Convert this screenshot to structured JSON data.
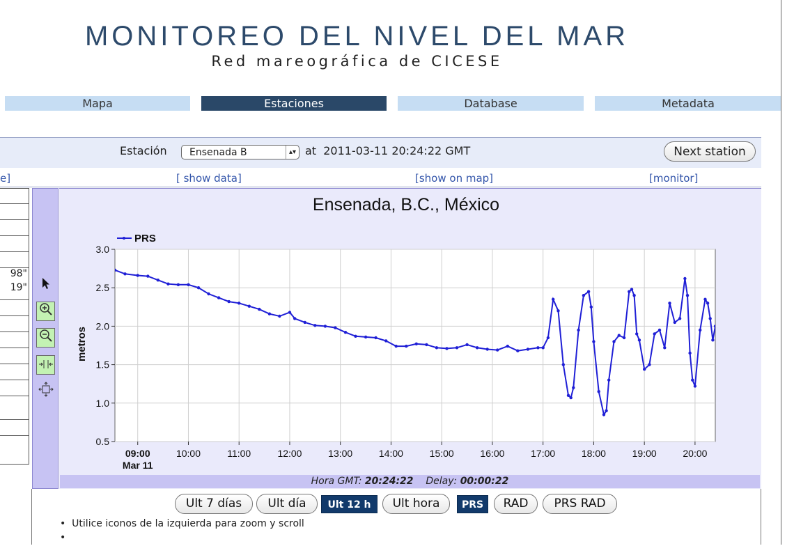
{
  "header": {
    "title": "MONITOREO DEL NIVEL DEL MAR",
    "subtitle": "Red mareográfica de CICESE"
  },
  "nav": {
    "tabs": [
      {
        "label": "Mapa",
        "active": false
      },
      {
        "label": "Estaciones",
        "active": true
      },
      {
        "label": "Database",
        "active": false
      },
      {
        "label": "Metadata",
        "active": false
      }
    ]
  },
  "station_bar": {
    "label": "Estación",
    "selected": "Ensenada B",
    "at_text": "at  2011-03-11 20:24:22 GMT",
    "next_button": "Next station"
  },
  "links": {
    "partial_left": "e]",
    "show_data": "[ show data]",
    "show_on_map": "[show on map]",
    "monitor": "[monitor]"
  },
  "left_table": {
    "values": [
      "",
      "",
      "",
      "",
      "98\"",
      "19\"",
      "",
      "",
      "",
      "",
      "",
      "",
      ""
    ]
  },
  "toolbar": {
    "tools": [
      "pointer-icon",
      "zoom-in-icon",
      "zoom-out-icon",
      "fit-horizontal-icon",
      "pan-icon"
    ]
  },
  "chart_data": {
    "type": "line",
    "title": "Ensenada, B.C., México",
    "ylabel": "metros",
    "xlabel": "",
    "ylim": [
      0.5,
      3.0
    ],
    "yticks": [
      0.5,
      1.0,
      1.5,
      2.0,
      2.5,
      3.0
    ],
    "xticks": [
      "09:00",
      "10:00",
      "11:00",
      "12:00",
      "13:00",
      "14:00",
      "15:00",
      "16:00",
      "17:00",
      "18:00",
      "19:00",
      "20:00"
    ],
    "x_sub_label": "Mar 11",
    "xlim_hours": [
      8.55,
      20.4
    ],
    "grid": true,
    "legend": "top-left",
    "color": "#1f1fd6",
    "series": [
      {
        "name": "PRS",
        "x": [
          8.55,
          8.75,
          9.0,
          9.2,
          9.4,
          9.6,
          9.8,
          10.0,
          10.2,
          10.4,
          10.6,
          10.8,
          11.0,
          11.2,
          11.4,
          11.6,
          11.8,
          12.0,
          12.1,
          12.3,
          12.5,
          12.7,
          12.9,
          13.1,
          13.3,
          13.5,
          13.7,
          13.9,
          14.1,
          14.3,
          14.5,
          14.7,
          14.9,
          15.1,
          15.3,
          15.5,
          15.7,
          15.9,
          16.1,
          16.3,
          16.5,
          16.7,
          16.9,
          17.0,
          17.1,
          17.2,
          17.3,
          17.4,
          17.5,
          17.55,
          17.6,
          17.7,
          17.8,
          17.9,
          17.95,
          18.0,
          18.1,
          18.2,
          18.25,
          18.3,
          18.4,
          18.5,
          18.6,
          18.7,
          18.75,
          18.8,
          18.85,
          18.9,
          19.0,
          19.1,
          19.2,
          19.3,
          19.4,
          19.5,
          19.6,
          19.7,
          19.8,
          19.85,
          19.9,
          19.95,
          20.0,
          20.1,
          20.2,
          20.25,
          20.3,
          20.35,
          20.4
        ],
        "y": [
          2.73,
          2.68,
          2.66,
          2.65,
          2.6,
          2.55,
          2.54,
          2.54,
          2.5,
          2.42,
          2.37,
          2.32,
          2.3,
          2.26,
          2.22,
          2.16,
          2.13,
          2.18,
          2.1,
          2.05,
          2.01,
          2.0,
          1.98,
          1.92,
          1.87,
          1.86,
          1.85,
          1.81,
          1.74,
          1.74,
          1.77,
          1.76,
          1.72,
          1.71,
          1.72,
          1.76,
          1.72,
          1.7,
          1.69,
          1.74,
          1.68,
          1.7,
          1.72,
          1.72,
          1.85,
          2.35,
          2.2,
          1.5,
          1.1,
          1.07,
          1.2,
          1.95,
          2.4,
          2.45,
          2.25,
          1.8,
          1.15,
          0.85,
          0.9,
          1.3,
          1.8,
          1.88,
          1.85,
          2.45,
          2.48,
          2.4,
          1.9,
          1.82,
          1.44,
          1.5,
          1.9,
          1.95,
          1.72,
          2.3,
          2.05,
          2.1,
          2.62,
          2.4,
          1.65,
          1.3,
          1.22,
          1.95,
          2.35,
          2.3,
          2.1,
          1.82,
          2.0
        ]
      }
    ]
  },
  "footer": {
    "hora_label": "Hora GMT:",
    "hora_value": "20:24:22",
    "delay_label": "Delay:",
    "delay_value": "00:00:22"
  },
  "range_buttons": [
    {
      "label": "Ult 7 días",
      "selected": false
    },
    {
      "label": "Ult día",
      "selected": false
    },
    {
      "label": "Ult 12 h",
      "selected": true
    },
    {
      "label": "Ult hora",
      "selected": false
    },
    {
      "label": "PRS",
      "selected": true
    },
    {
      "label": "RAD",
      "selected": false
    },
    {
      "label": "PRS RAD",
      "selected": false
    }
  ],
  "notes": [
    "Utilice iconos de la izquierda para zoom y scroll",
    ""
  ]
}
